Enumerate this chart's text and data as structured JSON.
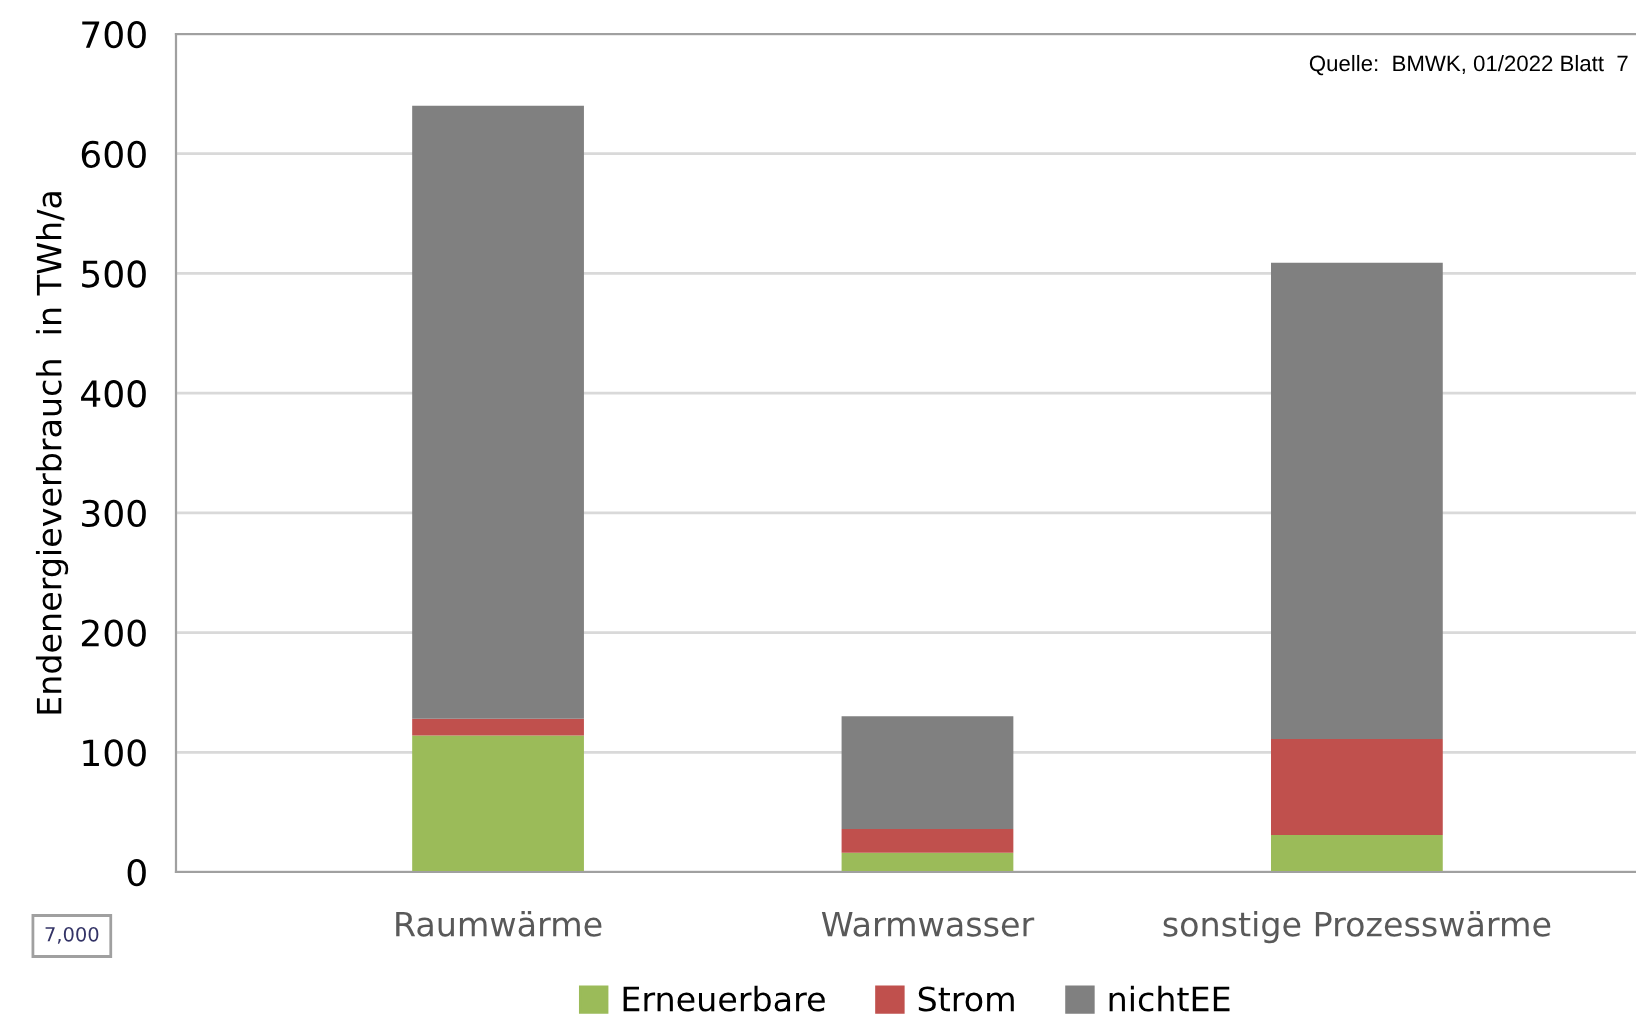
{
  "chart_data": {
    "type": "bar",
    "stacked": true,
    "ylabel": "Endenergieverbrauch  in TWh/a",
    "categories": [
      "Raumwärme",
      "Warmwasser",
      "sonstige Prozesswärme"
    ],
    "series": [
      {
        "name": "Erneuerbare",
        "color": "#9bbb59",
        "values": [
          114,
          16,
          31
        ]
      },
      {
        "name": "Strom",
        "color": "#c0504d",
        "values": [
          14,
          20,
          80
        ]
      },
      {
        "name": "nichtEE",
        "color": "#808080",
        "values": [
          512,
          94,
          398
        ]
      }
    ],
    "ylim": [
      0,
      700
    ],
    "yticks": [
      0,
      100,
      200,
      300,
      400,
      500,
      600,
      700
    ],
    "grid": "y",
    "legend": "bottom",
    "annotations": [
      "Quelle:  BMWK, 01/2022 Blatt  7",
      "7,000"
    ]
  }
}
